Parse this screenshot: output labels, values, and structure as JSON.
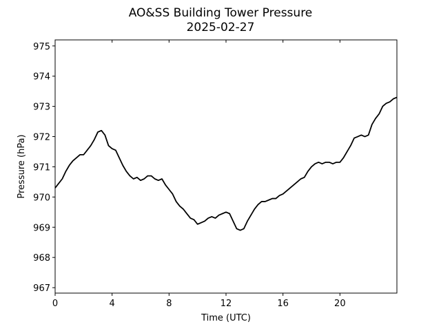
{
  "chart_data": {
    "type": "line",
    "title": "AO&SS Building Tower Pressure",
    "subtitle": "2025-02-27",
    "x_label": "Time (UTC)",
    "y_label": "Pressure (hPa)",
    "color": "#000000",
    "x": [
      0,
      0.25,
      0.5,
      0.75,
      1,
      1.25,
      1.5,
      1.75,
      2,
      2.25,
      2.5,
      2.75,
      3,
      3.25,
      3.5,
      3.75,
      4,
      4.25,
      4.5,
      4.75,
      5,
      5.25,
      5.5,
      5.75,
      6,
      6.25,
      6.5,
      6.75,
      7,
      7.25,
      7.5,
      7.75,
      8,
      8.25,
      8.5,
      8.75,
      9,
      9.25,
      9.5,
      9.75,
      10,
      10.25,
      10.5,
      10.75,
      11,
      11.25,
      11.5,
      11.75,
      12,
      12.25,
      12.5,
      12.75,
      13,
      13.25,
      13.5,
      13.75,
      14,
      14.25,
      14.5,
      14.75,
      15,
      15.25,
      15.5,
      15.75,
      16,
      16.25,
      16.5,
      16.75,
      17,
      17.25,
      17.5,
      17.75,
      18,
      18.25,
      18.5,
      18.75,
      19,
      19.25,
      19.5,
      19.75,
      20,
      20.25,
      20.5,
      20.75,
      21,
      21.25,
      21.5,
      21.75,
      22,
      22.25,
      22.5,
      22.75,
      23,
      23.25,
      23.5,
      23.75,
      24
    ],
    "values": [
      970.3,
      970.45,
      970.6,
      970.85,
      971.05,
      971.2,
      971.3,
      971.4,
      971.4,
      971.55,
      971.7,
      971.9,
      972.15,
      972.2,
      972.05,
      971.7,
      971.6,
      971.55,
      971.3,
      971.05,
      970.85,
      970.7,
      970.6,
      970.65,
      970.55,
      970.6,
      970.7,
      970.7,
      970.6,
      970.55,
      970.6,
      970.4,
      970.25,
      970.1,
      969.85,
      969.7,
      969.6,
      969.45,
      969.3,
      969.25,
      969.1,
      969.15,
      969.2,
      969.3,
      969.35,
      969.3,
      969.4,
      969.45,
      969.5,
      969.45,
      969.2,
      968.95,
      968.9,
      968.95,
      969.2,
      969.4,
      969.6,
      969.75,
      969.85,
      969.85,
      969.9,
      969.95,
      969.95,
      970.05,
      970.1,
      970.2,
      970.3,
      970.4,
      970.5,
      970.6,
      970.65,
      970.85,
      971.0,
      971.1,
      971.15,
      971.1,
      971.15,
      971.15,
      971.1,
      971.15,
      971.15,
      971.3,
      971.5,
      971.7,
      971.95,
      972.0,
      972.05,
      972.0,
      972.05,
      972.4,
      972.6,
      972.75,
      973.0,
      973.1,
      973.15,
      973.25,
      973.3
    ],
    "xlim": [
      0,
      24
    ],
    "xticks": [
      0,
      4,
      8,
      12,
      16,
      20
    ],
    "ylim": [
      966.82,
      975.2
    ],
    "yticks": [
      967,
      968,
      969,
      970,
      971,
      972,
      973,
      974,
      975
    ],
    "grid": false
  }
}
